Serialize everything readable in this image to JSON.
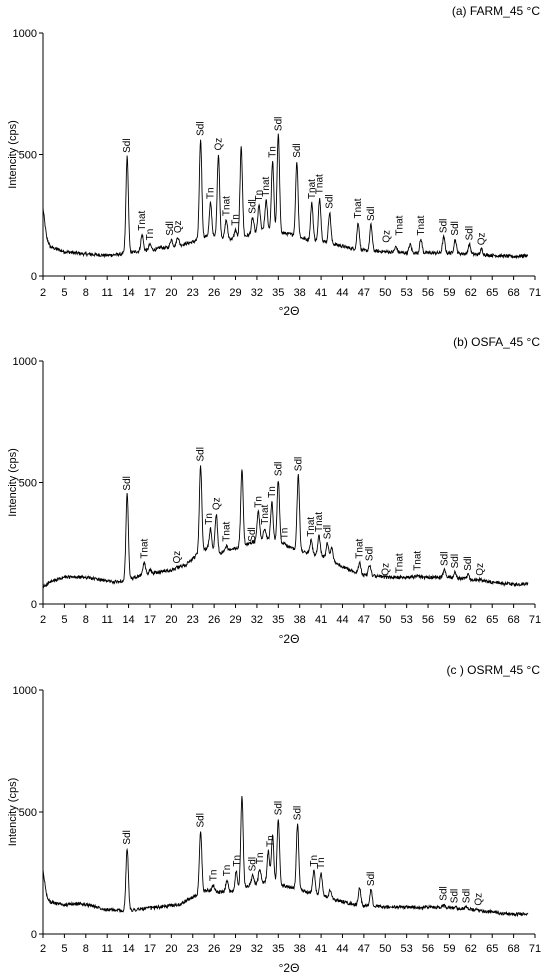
{
  "chart_data": [
    {
      "type": "line",
      "title": "(a) FARM_45 °C",
      "xlabel": "°2Θ",
      "ylabel": "Intencity (cps)",
      "xlim": [
        2,
        71
      ],
      "ylim": [
        0,
        1000
      ],
      "xticks": [
        "2",
        "5",
        "8",
        "11",
        "14",
        "17",
        "20",
        "23",
        "26",
        "29",
        "32",
        "35",
        "38",
        "41",
        "44",
        "47",
        "50",
        "53",
        "56",
        "59",
        "62",
        "65",
        "68",
        "71"
      ],
      "yticks": [
        "0",
        "500",
        "1000"
      ],
      "baseline": [
        [
          2,
          280
        ],
        [
          2.5,
          160
        ],
        [
          3,
          120
        ],
        [
          5,
          100
        ],
        [
          8,
          90
        ],
        [
          11,
          85
        ],
        [
          13,
          90
        ],
        [
          15,
          100
        ],
        [
          18,
          110
        ],
        [
          21,
          125
        ],
        [
          23,
          140
        ],
        [
          25,
          165
        ],
        [
          27,
          160
        ],
        [
          29,
          150
        ],
        [
          31,
          170
        ],
        [
          33,
          190
        ],
        [
          35,
          180
        ],
        [
          37,
          170
        ],
        [
          39,
          150
        ],
        [
          41,
          145
        ],
        [
          43,
          130
        ],
        [
          45,
          115
        ],
        [
          47,
          105
        ],
        [
          50,
          100
        ],
        [
          53,
          95
        ],
        [
          56,
          95
        ],
        [
          59,
          95
        ],
        [
          62,
          90
        ],
        [
          65,
          85
        ],
        [
          68,
          80
        ],
        [
          70,
          85
        ]
      ],
      "peaks": [
        [
          13.8,
          490
        ],
        [
          15.9,
          170
        ],
        [
          17,
          130
        ],
        [
          18.5,
          120
        ],
        [
          20.0,
          150
        ],
        [
          20.9,
          160
        ],
        [
          24.1,
          560
        ],
        [
          25.5,
          300
        ],
        [
          26.6,
          500
        ],
        [
          27.7,
          230
        ],
        [
          29.0,
          190
        ],
        [
          29.8,
          530
        ],
        [
          31.4,
          240
        ],
        [
          32.3,
          290
        ],
        [
          33.3,
          310
        ],
        [
          34.2,
          470
        ],
        [
          35.0,
          580
        ],
        [
          37.6,
          470
        ],
        [
          39.7,
          300
        ],
        [
          40.8,
          320
        ],
        [
          42.2,
          260
        ],
        [
          46.2,
          220
        ],
        [
          48.0,
          210
        ],
        [
          51.5,
          120
        ],
        [
          53.5,
          130
        ],
        [
          55.0,
          150
        ],
        [
          58.2,
          160
        ],
        [
          59.8,
          150
        ],
        [
          61.8,
          130
        ],
        [
          63.5,
          110
        ]
      ],
      "annotations": [
        {
          "text": "Sdl",
          "x": 13.8,
          "y": 490
        },
        {
          "text": "Tnat",
          "x": 15.9,
          "y": 170
        },
        {
          "text": "Tn",
          "x": 17.0,
          "y": 130
        },
        {
          "text": "Sdl",
          "x": 19.8,
          "y": 150
        },
        {
          "text": "Qz",
          "x": 20.9,
          "y": 160
        },
        {
          "text": "Sdl",
          "x": 24.1,
          "y": 560
        },
        {
          "text": "Tn",
          "x": 25.5,
          "y": 300
        },
        {
          "text": "Qz",
          "x": 26.6,
          "y": 500
        },
        {
          "text": "Tnat",
          "x": 27.7,
          "y": 230
        },
        {
          "text": "Tn",
          "x": 29.0,
          "y": 190
        },
        {
          "text": "Sdl",
          "x": 31.4,
          "y": 240
        },
        {
          "text": "Tn",
          "x": 32.3,
          "y": 290
        },
        {
          "text": "Tnat",
          "x": 33.3,
          "y": 310
        },
        {
          "text": "Tn",
          "x": 34.2,
          "y": 470
        },
        {
          "text": "Sdl",
          "x": 35.0,
          "y": 580
        },
        {
          "text": "Sdl",
          "x": 37.6,
          "y": 470
        },
        {
          "text": "Tnat",
          "x": 39.7,
          "y": 300
        },
        {
          "text": "Tnat",
          "x": 40.8,
          "y": 320
        },
        {
          "text": "Sdl",
          "x": 42.2,
          "y": 260
        },
        {
          "text": "Tnat",
          "x": 46.2,
          "y": 220
        },
        {
          "text": "Sdl",
          "x": 48.0,
          "y": 210
        },
        {
          "text": "Qz",
          "x": 50.2,
          "y": 120
        },
        {
          "text": "Tnat",
          "x": 52.0,
          "y": 150
        },
        {
          "text": "Tnat",
          "x": 55.0,
          "y": 150
        },
        {
          "text": "Sdl",
          "x": 58.2,
          "y": 160
        },
        {
          "text": "Sdl",
          "x": 59.8,
          "y": 150
        },
        {
          "text": "Sdl",
          "x": 61.8,
          "y": 130
        },
        {
          "text": "Qz",
          "x": 63.5,
          "y": 110
        }
      ]
    },
    {
      "type": "line",
      "title": "(b) OSFA_45 °C",
      "xlabel": "°2Θ",
      "ylabel": "Intencity (cps)",
      "xlim": [
        2,
        71
      ],
      "ylim": [
        0,
        1000
      ],
      "xticks": [
        "2",
        "5",
        "8",
        "11",
        "14",
        "17",
        "20",
        "23",
        "26",
        "29",
        "32",
        "35",
        "38",
        "41",
        "44",
        "47",
        "50",
        "53",
        "56",
        "59",
        "62",
        "65",
        "68",
        "71"
      ],
      "yticks": [
        "0",
        "500",
        "1000"
      ],
      "baseline": [
        [
          2,
          70
        ],
        [
          3,
          90
        ],
        [
          5,
          110
        ],
        [
          8,
          110
        ],
        [
          10,
          100
        ],
        [
          12,
          90
        ],
        [
          14,
          100
        ],
        [
          16,
          120
        ],
        [
          18,
          130
        ],
        [
          20,
          140
        ],
        [
          22,
          160
        ],
        [
          23.5,
          200
        ],
        [
          25,
          230
        ],
        [
          27,
          210
        ],
        [
          29,
          230
        ],
        [
          31,
          250
        ],
        [
          33,
          270
        ],
        [
          35,
          250
        ],
        [
          37,
          230
        ],
        [
          39,
          210
        ],
        [
          41,
          200
        ],
        [
          43,
          170
        ],
        [
          45,
          140
        ],
        [
          47,
          120
        ],
        [
          50,
          110
        ],
        [
          53,
          110
        ],
        [
          56,
          110
        ],
        [
          59,
          110
        ],
        [
          62,
          100
        ],
        [
          65,
          90
        ],
        [
          68,
          80
        ],
        [
          70,
          85
        ]
      ],
      "peaks": [
        [
          13.8,
          450
        ],
        [
          16.2,
          170
        ],
        [
          17,
          140
        ],
        [
          20.8,
          150
        ],
        [
          24.1,
          570
        ],
        [
          25.5,
          310
        ],
        [
          26.3,
          370
        ],
        [
          27.7,
          240
        ],
        [
          29.9,
          550
        ],
        [
          31.3,
          240
        ],
        [
          32.2,
          380
        ],
        [
          33.1,
          310
        ],
        [
          34.1,
          420
        ],
        [
          35.0,
          510
        ],
        [
          35.9,
          250
        ],
        [
          37.8,
          530
        ],
        [
          39.6,
          260
        ],
        [
          40.7,
          280
        ],
        [
          41.9,
          250
        ],
        [
          42.5,
          230
        ],
        [
          46.4,
          170
        ],
        [
          47.8,
          160
        ],
        [
          50.0,
          100
        ],
        [
          52.0,
          110
        ],
        [
          54.5,
          120
        ],
        [
          58.3,
          140
        ],
        [
          59.8,
          130
        ],
        [
          61.6,
          120
        ],
        [
          63.3,
          100
        ]
      ],
      "annotations": [
        {
          "text": "Sdl",
          "x": 13.8,
          "y": 450
        },
        {
          "text": "Tnat",
          "x": 16.2,
          "y": 170
        },
        {
          "text": "Qz",
          "x": 20.8,
          "y": 150
        },
        {
          "text": "Sdl",
          "x": 24.1,
          "y": 570
        },
        {
          "text": "Tn",
          "x": 25.3,
          "y": 310
        },
        {
          "text": "Qz",
          "x": 26.3,
          "y": 370
        },
        {
          "text": "Tnat",
          "x": 27.7,
          "y": 240
        },
        {
          "text": "Sdl",
          "x": 31.3,
          "y": 240
        },
        {
          "text": "Tn",
          "x": 32.2,
          "y": 380
        },
        {
          "text": "Tnat",
          "x": 33.1,
          "y": 310
        },
        {
          "text": "Tn",
          "x": 34.1,
          "y": 420
        },
        {
          "text": "Sdl",
          "x": 35.0,
          "y": 510
        },
        {
          "text": "Tn",
          "x": 35.9,
          "y": 250
        },
        {
          "text": "Sdl",
          "x": 37.8,
          "y": 530
        },
        {
          "text": "Tnat",
          "x": 39.6,
          "y": 260
        },
        {
          "text": "Tnat",
          "x": 40.7,
          "y": 280
        },
        {
          "text": "Sdl",
          "x": 41.9,
          "y": 250
        },
        {
          "text": "Tnat",
          "x": 46.4,
          "y": 170
        },
        {
          "text": "Sdl",
          "x": 47.8,
          "y": 160
        },
        {
          "text": "Qz",
          "x": 50.0,
          "y": 100
        },
        {
          "text": "Tnat",
          "x": 52.0,
          "y": 110
        },
        {
          "text": "Tnat",
          "x": 54.5,
          "y": 120
        },
        {
          "text": "Sdl",
          "x": 58.3,
          "y": 140
        },
        {
          "text": "Sdl",
          "x": 59.8,
          "y": 130
        },
        {
          "text": "Sdl",
          "x": 61.6,
          "y": 120
        },
        {
          "text": "Qz",
          "x": 63.3,
          "y": 100
        }
      ]
    },
    {
      "type": "line",
      "title": "(c ) OSRM_45 °C",
      "xlabel": "°2Θ",
      "ylabel": "Intencity (cps)",
      "xlim": [
        2,
        71
      ],
      "ylim": [
        0,
        1000
      ],
      "xticks": [
        "2",
        "5",
        "8",
        "11",
        "14",
        "17",
        "20",
        "23",
        "26",
        "29",
        "32",
        "35",
        "38",
        "41",
        "44",
        "47",
        "50",
        "53",
        "56",
        "59",
        "62",
        "65",
        "68",
        "71"
      ],
      "yticks": [
        "0",
        "500",
        "1000"
      ],
      "baseline": [
        [
          2,
          260
        ],
        [
          2.5,
          160
        ],
        [
          3,
          130
        ],
        [
          5,
          120
        ],
        [
          7,
          125
        ],
        [
          9,
          115
        ],
        [
          11,
          100
        ],
        [
          13,
          95
        ],
        [
          15,
          100
        ],
        [
          18,
          110
        ],
        [
          21,
          120
        ],
        [
          23,
          150
        ],
        [
          25,
          180
        ],
        [
          27,
          170
        ],
        [
          29,
          175
        ],
        [
          31,
          200
        ],
        [
          33,
          210
        ],
        [
          35,
          200
        ],
        [
          37,
          190
        ],
        [
          39,
          170
        ],
        [
          41,
          160
        ],
        [
          43,
          140
        ],
        [
          45,
          125
        ],
        [
          47,
          115
        ],
        [
          50,
          110
        ],
        [
          53,
          110
        ],
        [
          56,
          110
        ],
        [
          59,
          110
        ],
        [
          62,
          100
        ],
        [
          65,
          90
        ],
        [
          68,
          80
        ],
        [
          70,
          85
        ]
      ],
      "peaks": [
        [
          13.8,
          350
        ],
        [
          24.1,
          420
        ],
        [
          25.9,
          200
        ],
        [
          27.8,
          220
        ],
        [
          29.1,
          260
        ],
        [
          29.9,
          560
        ],
        [
          31.4,
          240
        ],
        [
          32.4,
          270
        ],
        [
          33.6,
          340
        ],
        [
          34.2,
          400
        ],
        [
          35.0,
          470
        ],
        [
          37.7,
          450
        ],
        [
          40.0,
          260
        ],
        [
          41.0,
          250
        ],
        [
          42.3,
          180
        ],
        [
          46.4,
          190
        ],
        [
          48.0,
          180
        ],
        [
          58.2,
          120
        ],
        [
          59.7,
          110
        ],
        [
          61.4,
          110
        ],
        [
          63.1,
          100
        ]
      ],
      "annotations": [
        {
          "text": "Sdl",
          "x": 13.8,
          "y": 350
        },
        {
          "text": "Sdl",
          "x": 24.1,
          "y": 420
        },
        {
          "text": "Tn",
          "x": 25.9,
          "y": 200
        },
        {
          "text": "Tn",
          "x": 27.8,
          "y": 220
        },
        {
          "text": "Tn",
          "x": 29.2,
          "y": 260
        },
        {
          "text": "Sdl",
          "x": 31.4,
          "y": 240
        },
        {
          "text": "Tn",
          "x": 32.4,
          "y": 270
        },
        {
          "text": "Tn",
          "x": 33.9,
          "y": 340
        },
        {
          "text": "Sdl",
          "x": 35.0,
          "y": 470
        },
        {
          "text": "Sdl",
          "x": 37.7,
          "y": 450
        },
        {
          "text": "Tn",
          "x": 40.0,
          "y": 260
        },
        {
          "text": "Tn",
          "x": 41.0,
          "y": 250
        },
        {
          "text": "Sdl",
          "x": 48.0,
          "y": 180
        },
        {
          "text": "Sdl",
          "x": 58.2,
          "y": 120
        },
        {
          "text": "Sdl",
          "x": 59.7,
          "y": 110
        },
        {
          "text": "Sdl",
          "x": 61.4,
          "y": 110
        },
        {
          "text": "Qz",
          "x": 63.1,
          "y": 100
        }
      ]
    }
  ]
}
